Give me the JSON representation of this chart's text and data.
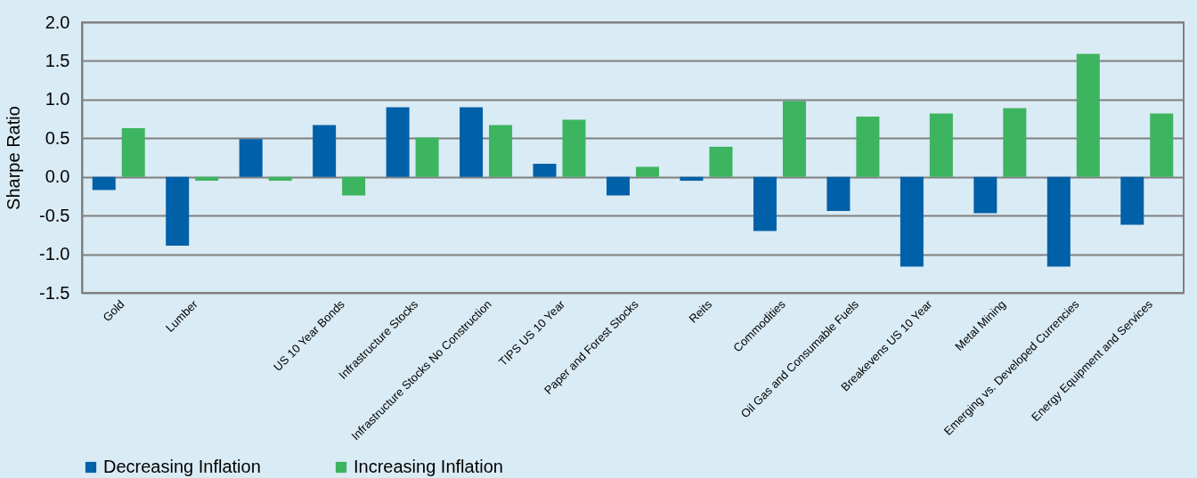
{
  "chart_data": {
    "type": "bar",
    "ylabel": "Sharpe Ratio",
    "categories": [
      "Gold",
      "Lumber",
      null,
      "US 10 Year Bonds",
      "Infrastructure Stocks",
      "Infrastructure Stocks No Construction",
      "TIPS US 10 Year",
      "Paper and Forest Stocks",
      "Reits",
      "Commodities",
      "Oil Gas and Consumable Fuels",
      "Breakevens US 10 Year",
      "Metal Mining",
      "Emerging vs. Developed Currencies",
      "Energy Equipment and Services"
    ],
    "series": [
      {
        "name": "Decreasing Inflation",
        "color": "#0060a8",
        "values": [
          -0.17,
          -0.89,
          0.49,
          0.67,
          0.9,
          0.9,
          0.17,
          -0.24,
          -0.05,
          -0.7,
          -0.44,
          -1.16,
          -0.47,
          -1.16,
          -0.62
        ]
      },
      {
        "name": "Increasing Inflation",
        "color": "#3cb460",
        "values": [
          0.63,
          -0.05,
          -0.05,
          -0.24,
          0.51,
          0.67,
          0.74,
          0.13,
          0.39,
          0.98,
          0.78,
          0.82,
          0.89,
          1.59,
          0.82
        ]
      }
    ],
    "ylim": [
      -1.5,
      2.0
    ],
    "yticks": [
      {
        "value": -1.5,
        "label": "-1.5"
      },
      {
        "value": -1.0,
        "label": "-1.0"
      },
      {
        "value": -0.5,
        "label": "-0.5"
      },
      {
        "value": 0,
        "label": "0.0"
      },
      {
        "value": 0.5,
        "label": "0.5"
      },
      {
        "value": 1.0,
        "label": "1.0"
      },
      {
        "value": 1.5,
        "label": "1.5"
      },
      {
        "value": 2.0,
        "label": "2.0"
      }
    ],
    "grid": "y",
    "legend": "bottom"
  }
}
